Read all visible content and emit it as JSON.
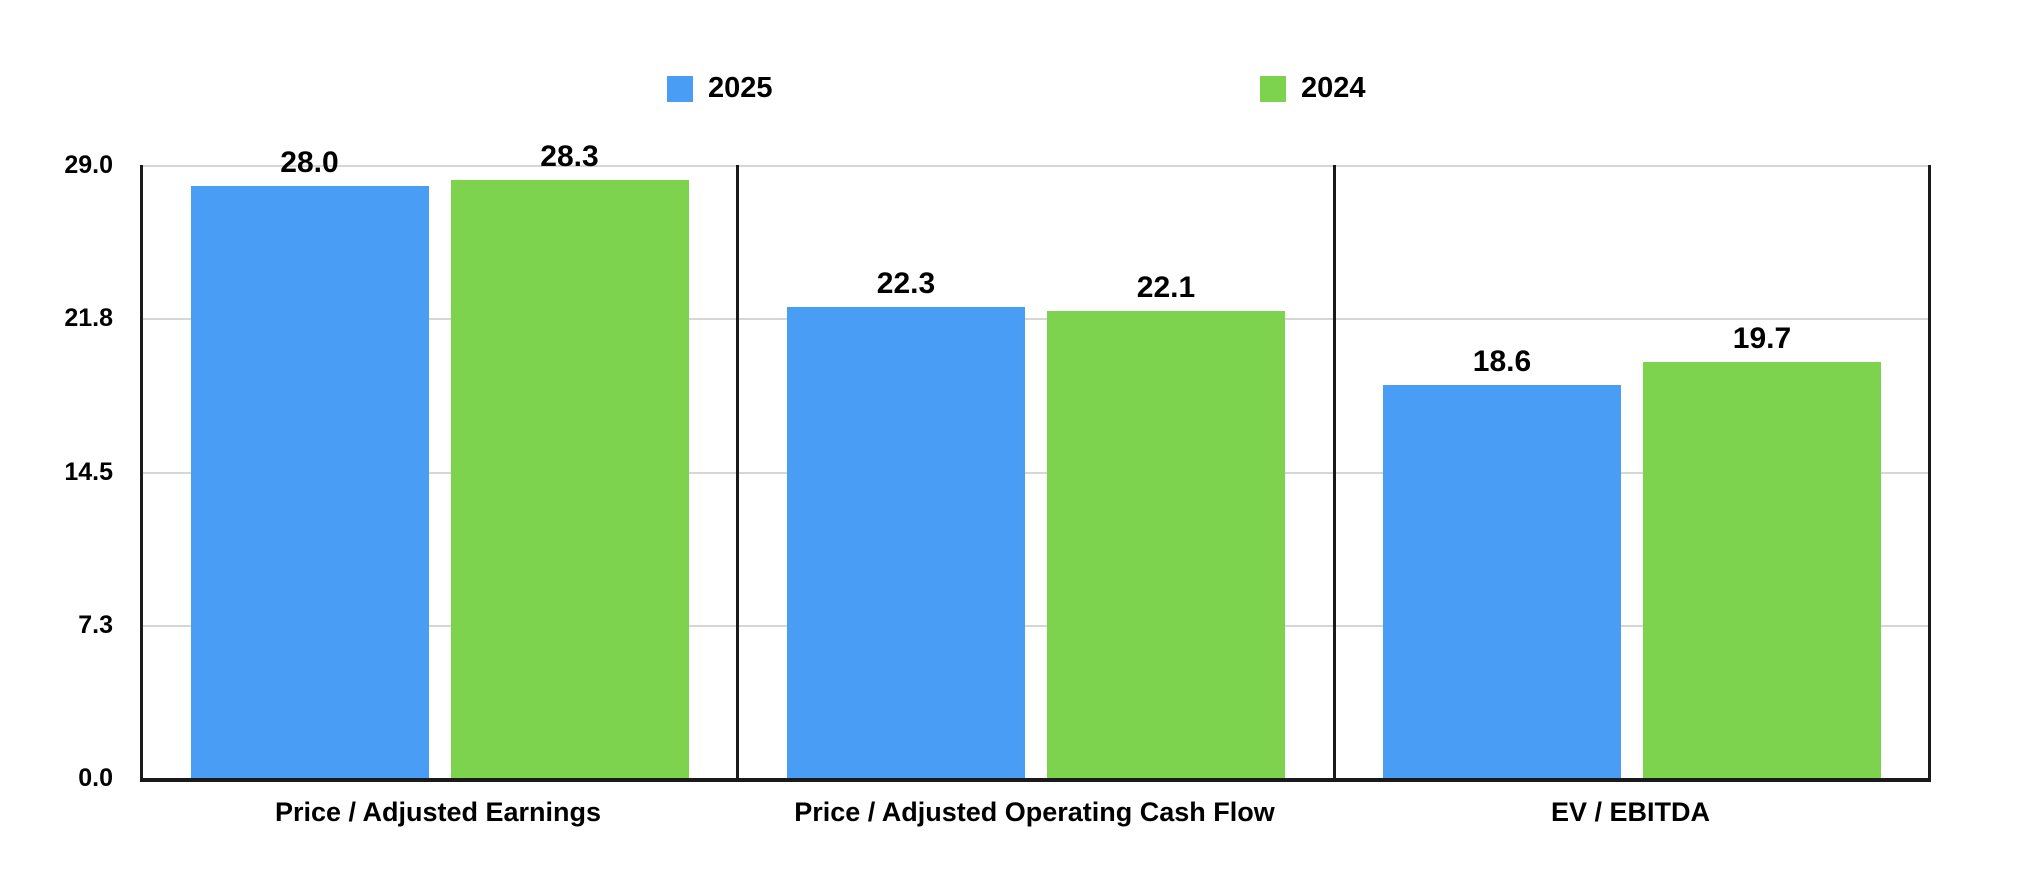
{
  "chart_data": {
    "type": "bar",
    "title": "",
    "xlabel": "",
    "ylabel": "",
    "categories": [
      "Price / Adjusted Earnings",
      "Price / Adjusted Operating Cash Flow",
      "EV / EBITDA"
    ],
    "series": [
      {
        "name": "2025",
        "color": "#4A9DF4",
        "values": [
          28.0,
          22.3,
          18.6
        ]
      },
      {
        "name": "2024",
        "color": "#7DD24E",
        "values": [
          28.3,
          22.1,
          19.7
        ]
      }
    ],
    "value_labels": {
      "2025": [
        "28.0",
        "22.3",
        "18.6"
      ],
      "2024": [
        "28.3",
        "22.1",
        "19.7"
      ]
    },
    "ylim": [
      0,
      29
    ],
    "yticks": [
      {
        "value": 0,
        "label": "0.0"
      },
      {
        "value": 7.25,
        "label": "7.3"
      },
      {
        "value": 14.5,
        "label": "14.5"
      },
      {
        "value": 21.75,
        "label": "21.8"
      },
      {
        "value": 29,
        "label": "29.0"
      }
    ],
    "grid": "horizontal",
    "legend_position": "top",
    "panel_dividers": true,
    "colors": {
      "grid": "#D6D6D6",
      "axis": "#1A1A1A",
      "text": "#000000",
      "background": "#FFFFFF"
    }
  }
}
